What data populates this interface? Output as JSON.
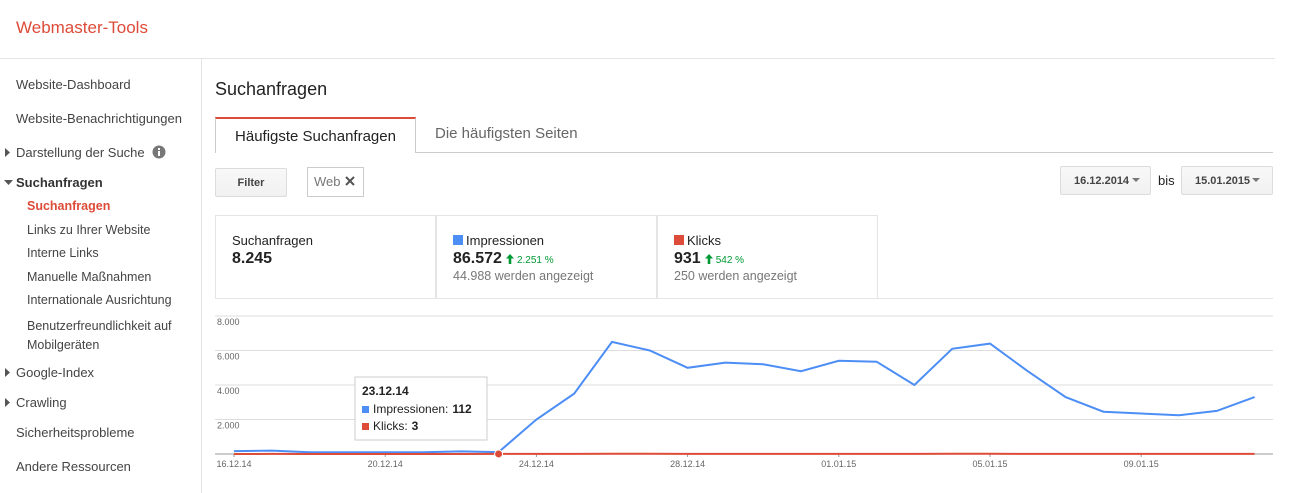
{
  "header": {
    "title": "Webmaster-Tools"
  },
  "sidebar": {
    "items": [
      "Website-Dashboard",
      "Website-Benachrichtigungen",
      "Darstellung der Suche",
      "Suchanfragen",
      "Suchanfragen",
      "Links zu Ihrer Website",
      "Interne Links",
      "Manuelle Maßnahmen",
      "Internationale Ausrichtung",
      "Benutzerfreundlichkeit auf Mobilgeräten",
      "Google-Index",
      "Crawling",
      "Sicherheitsprobleme",
      "Andere Ressourcen"
    ]
  },
  "main": {
    "title": "Suchanfragen",
    "tabs": [
      "Häufigste Suchanfragen",
      "Die häufigsten Seiten"
    ],
    "filter": "Filter",
    "chip": "Web",
    "date_from": "16.12.2014",
    "date_sep": "bis",
    "date_to": "15.01.2015",
    "stats": [
      {
        "label": "Suchanfragen",
        "value": "8.245"
      },
      {
        "label": "Impressionen",
        "value": "86.572",
        "change": "2.251 %",
        "note": "44.988 werden angezeigt"
      },
      {
        "label": "Klicks",
        "value": "931",
        "change": "542 %",
        "note": "250 werden angezeigt"
      }
    ]
  },
  "chart_data": {
    "type": "line",
    "categories": [
      "16.12.14",
      null,
      null,
      null,
      "20.12.14",
      null,
      null,
      null,
      "24.12.14",
      null,
      null,
      null,
      "28.12.14",
      null,
      null,
      null,
      "01.01.15",
      null,
      null,
      null,
      "05.01.15",
      null,
      null,
      null,
      "09.01.15",
      null,
      null,
      null
    ],
    "series": [
      {
        "name": "Impressionen",
        "color": "#4d8ef5",
        "values": [
          170,
          200,
          100,
          100,
          100,
          100,
          150,
          112,
          2000,
          3500,
          6500,
          6000,
          5000,
          5300,
          5200,
          4800,
          5400,
          5350,
          4000,
          6100,
          6400,
          4800,
          3300,
          2450,
          2350,
          2250,
          2500,
          3300
        ]
      },
      {
        "name": "Klicks",
        "color": "#dd4b39",
        "values": [
          2,
          3,
          2,
          2,
          1,
          2,
          2,
          3,
          5,
          8,
          10,
          9,
          8,
          8,
          7,
          7,
          8,
          8,
          6,
          9,
          10,
          7,
          6,
          5,
          5,
          4,
          5,
          6
        ]
      }
    ],
    "ylim": [
      0,
      8000
    ],
    "yticks": [
      {
        "value": 2000,
        "label": "2.000"
      },
      {
        "value": 4000,
        "label": "4.000"
      },
      {
        "value": 6000,
        "label": "6.000"
      },
      {
        "value": 8000,
        "label": "8.000"
      }
    ],
    "grid": true,
    "tooltip": {
      "index": 7,
      "title": "23.12.14",
      "rows": [
        {
          "label": "Impressionen:",
          "value": 112
        },
        {
          "label": "Klicks:",
          "value": 3
        }
      ]
    }
  }
}
